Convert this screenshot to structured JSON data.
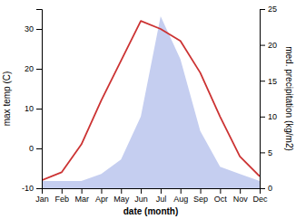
{
  "chart_data": {
    "type": "line",
    "categories": [
      "Jan",
      "Feb",
      "Mar",
      "Apr",
      "May",
      "Jun",
      "Jul",
      "Aug",
      "Sep",
      "Oct",
      "Nov",
      "Dec"
    ],
    "xlabel": "date (month)",
    "ylabel": "max temp (C)",
    "y2label": "med. precipitation (kg/m2)",
    "series": [
      {
        "type": "area",
        "axis": "y2",
        "color": "#c5cef0",
        "values": [
          1,
          1,
          1,
          2,
          4,
          10,
          24,
          18,
          8,
          3,
          2,
          1
        ]
      },
      {
        "type": "line",
        "color": "#cc3333",
        "values": [
          -8,
          -6,
          1,
          12,
          22,
          32,
          30,
          27,
          19,
          8,
          -2,
          -7
        ]
      }
    ],
    "ylim": [
      -10,
      35
    ],
    "yticks": [
      -10,
      0,
      10,
      20,
      30
    ],
    "y2lim": [
      0,
      25
    ],
    "y2ticks": [
      0,
      5,
      10,
      15,
      20,
      25
    ]
  }
}
